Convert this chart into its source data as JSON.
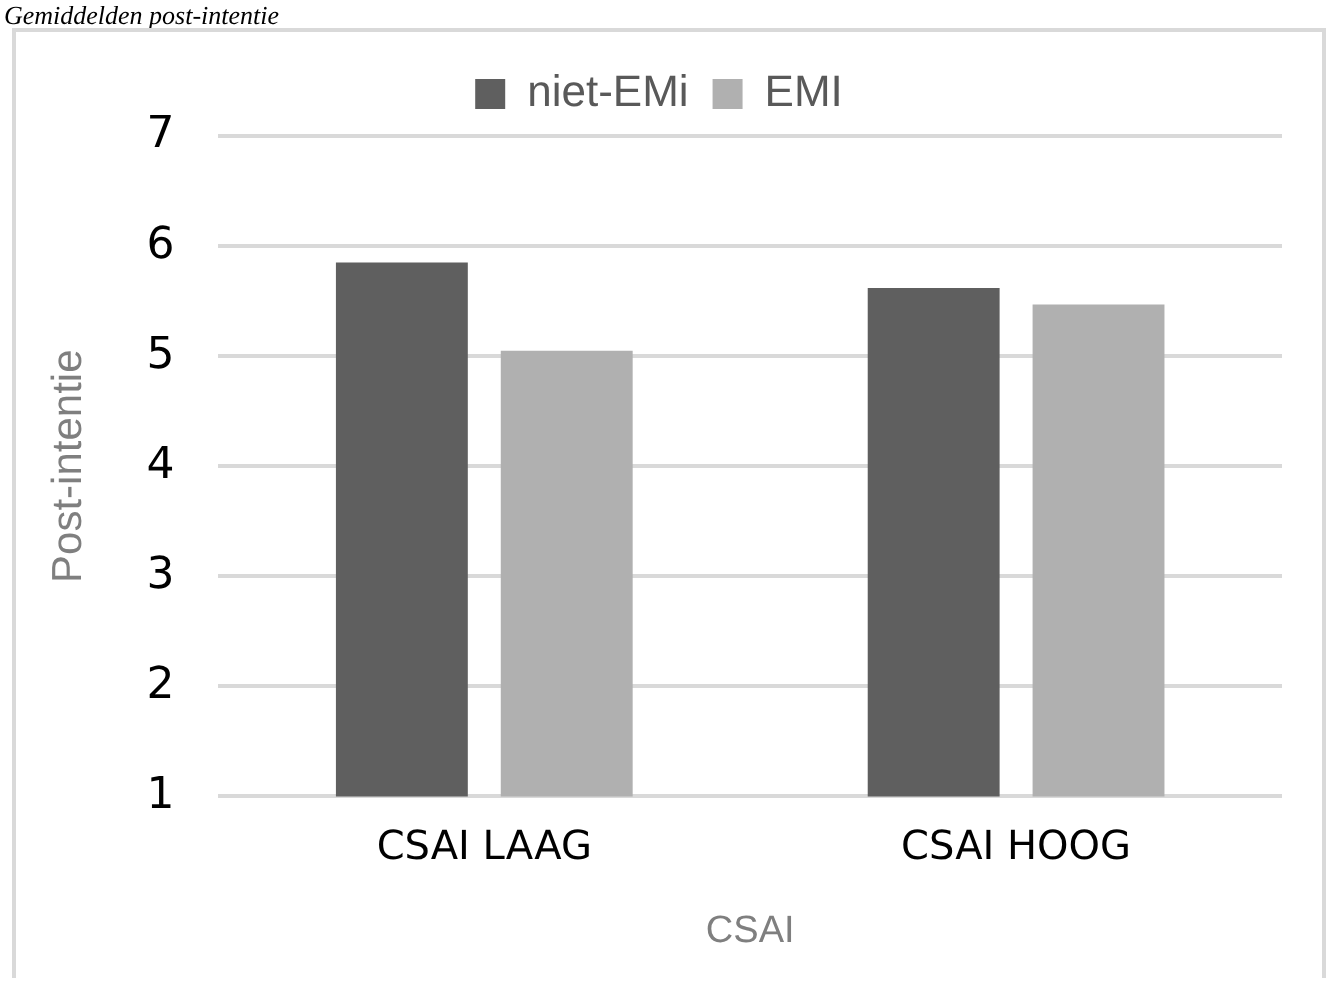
{
  "chart_data": {
    "type": "bar",
    "title": "Gemiddelden post-intentie",
    "xlabel": "CSAI",
    "ylabel": "Post-intentie",
    "categories": [
      "CSAI LAAG",
      "CSAI HOOG"
    ],
    "series": [
      {
        "name": "niet-EMi",
        "color": "#5f5f5f",
        "values": [
          5.85,
          5.62
        ]
      },
      {
        "name": "EMI",
        "color": "#b0b0b0",
        "values": [
          5.05,
          5.47
        ]
      }
    ],
    "ylim": [
      1,
      7
    ],
    "yticks": [
      1,
      2,
      3,
      4,
      5,
      6,
      7
    ],
    "grid": "y",
    "legend": "top"
  }
}
